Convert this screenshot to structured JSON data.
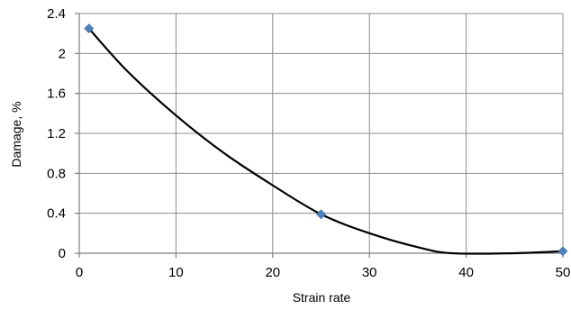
{
  "chart_data": {
    "type": "scatter",
    "xlabel": "Strain rate",
    "ylabel": "Damage, %",
    "xlim": [
      0,
      50
    ],
    "ylim": [
      0,
      2.4
    ],
    "x_ticks": [
      0,
      10,
      20,
      30,
      40,
      50
    ],
    "y_ticks": [
      0,
      0.4,
      0.8,
      1.2,
      1.6,
      2,
      2.4
    ],
    "x_tick_labels": [
      "0",
      "10",
      "20",
      "30",
      "40",
      "50"
    ],
    "y_tick_labels": [
      "0",
      "0.4",
      "0.8",
      "1.2",
      "1.6",
      "2",
      "2.4"
    ],
    "grid": true,
    "legend": "none",
    "series": [
      {
        "type": "scatter",
        "marker": "diamond",
        "color": "#4f81bd",
        "x": [
          1,
          25,
          50
        ],
        "y": [
          2.25,
          0.39,
          0.02
        ]
      },
      {
        "type": "line",
        "color": "#000000",
        "x": [
          1,
          5,
          10,
          15,
          20,
          25,
          30,
          35,
          38.5,
          45,
          50
        ],
        "y": [
          2.25,
          1.82,
          1.38,
          1.0,
          0.68,
          0.39,
          0.2,
          0.06,
          0.0,
          0.0,
          0.02
        ]
      }
    ]
  }
}
